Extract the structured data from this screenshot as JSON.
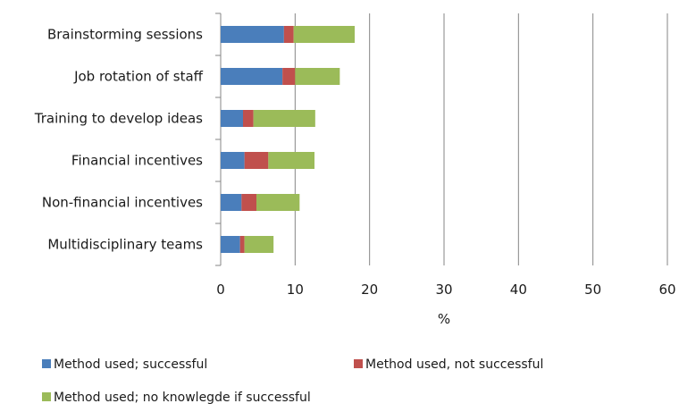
{
  "chart_data": {
    "type": "bar",
    "orientation": "horizontal",
    "stacked": true,
    "categories": [
      "Brainstorming sessions",
      "Job rotation of staff",
      "Training to develop ideas",
      "Financial incentives",
      "Non-financial incentives",
      "Multidisciplinary teams"
    ],
    "series": [
      {
        "name": "Method used; successful",
        "color": "#4a7ebb",
        "values": [
          8.5,
          8.3,
          3.0,
          3.2,
          2.8,
          2.6
        ]
      },
      {
        "name": "Method used, not successful",
        "color": "#c0504d",
        "values": [
          1.3,
          1.7,
          1.4,
          3.2,
          2.0,
          0.6
        ]
      },
      {
        "name": "Method used; no knowlegde if successful",
        "color": "#9bbb59",
        "values": [
          8.2,
          6.0,
          8.3,
          6.2,
          5.8,
          3.9
        ]
      }
    ],
    "xlabel": "%",
    "ylabel": "",
    "title": "",
    "xlim": [
      0,
      60
    ],
    "xticks": [
      0,
      10,
      20,
      30,
      40,
      50,
      60
    ],
    "grid": "vertical major gridlines",
    "legend_position": "bottom"
  }
}
